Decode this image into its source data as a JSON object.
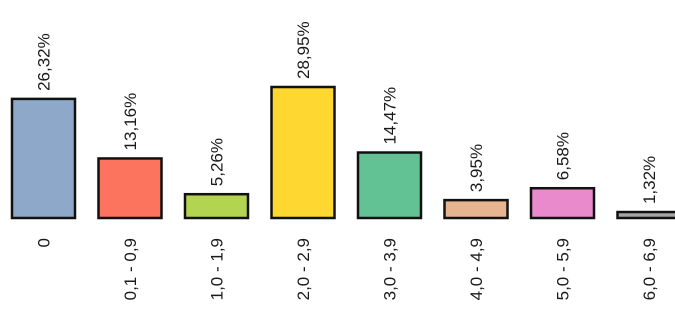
{
  "chart_data": {
    "type": "bar",
    "title": "",
    "xlabel": "",
    "ylabel": "",
    "ylim": [
      0,
      28.95
    ],
    "grid": false,
    "legend": "none",
    "categories": [
      "0",
      "0,1 - 0,9",
      "1,0 - 1,9",
      "2,0 - 2,9",
      "3,0 - 3,9",
      "4,0 - 4,9",
      "5,0 - 5,9",
      "6,0 - 6,9"
    ],
    "values": [
      26.32,
      13.16,
      5.26,
      28.95,
      14.47,
      3.95,
      6.58,
      1.32
    ],
    "value_labels": [
      "26,32%",
      "13,16%",
      "5,26%",
      "28,95%",
      "14,47%",
      "3,95%",
      "6,58%",
      "1,32%"
    ],
    "colors": [
      "#8DA8C8",
      "#FC735E",
      "#B3D451",
      "#FED731",
      "#63C293",
      "#E6B48F",
      "#E98ACD",
      "#A6A6A6"
    ]
  }
}
